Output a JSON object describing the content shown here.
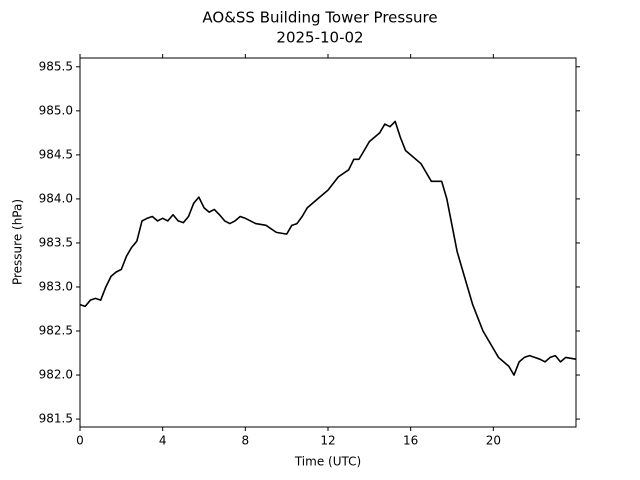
{
  "chart_data": {
    "type": "line",
    "title": "AO&SS Building Tower Pressure",
    "subtitle": "2025-10-02",
    "x_label": "Time (UTC)",
    "y_label": "Pressure (hPa)",
    "xlim": [
      0,
      24
    ],
    "xticks": [
      0,
      4,
      8,
      12,
      16,
      20
    ],
    "ylim": [
      981.41,
      985.6
    ],
    "yticks": [
      {
        "value": 981.5,
        "label": "981.5"
      },
      {
        "value": 982,
        "label": "982.0"
      },
      {
        "value": 982.5,
        "label": "982.5"
      },
      {
        "value": 983,
        "label": "983.0"
      },
      {
        "value": 983.5,
        "label": "983.5"
      },
      {
        "value": 984,
        "label": "984.0"
      },
      {
        "value": 984.5,
        "label": "984.5"
      },
      {
        "value": 985,
        "label": "985.0"
      },
      {
        "value": 985.5,
        "label": "985.5"
      }
    ],
    "grid": false,
    "series": [
      {
        "color": "#000000",
        "x": [
          0,
          0.25,
          0.5,
          0.75,
          1,
          1.25,
          1.5,
          1.75,
          2,
          2.25,
          2.5,
          2.75,
          3,
          3.25,
          3.5,
          3.75,
          4,
          4.25,
          4.5,
          4.75,
          5,
          5.25,
          5.5,
          5.75,
          6,
          6.25,
          6.5,
          6.75,
          7,
          7.25,
          7.5,
          7.75,
          8,
          8.5,
          9,
          9.5,
          10,
          10.25,
          10.5,
          10.75,
          11,
          11.5,
          12,
          12.5,
          13,
          13.25,
          13.5,
          13.75,
          14,
          14.5,
          14.75,
          15,
          15.25,
          15.5,
          15.75,
          16,
          16.5,
          16.75,
          17,
          17.5,
          17.75,
          18,
          18.25,
          18.5,
          18.75,
          19,
          19.25,
          19.5,
          19.75,
          20,
          20.25,
          20.5,
          20.75,
          21,
          21.25,
          21.5,
          21.75,
          22,
          22.25,
          22.5,
          22.75,
          23,
          23.25,
          23.5,
          24
        ],
        "values": [
          982.8,
          982.78,
          982.85,
          982.87,
          982.85,
          983.0,
          983.12,
          983.17,
          983.2,
          983.35,
          983.45,
          983.52,
          983.75,
          983.78,
          983.8,
          983.75,
          983.78,
          983.75,
          983.82,
          983.75,
          983.73,
          983.8,
          983.95,
          984.02,
          983.9,
          983.85,
          983.88,
          983.82,
          983.75,
          983.72,
          983.75,
          983.8,
          983.78,
          983.72,
          983.7,
          983.62,
          983.6,
          983.7,
          983.72,
          983.8,
          983.9,
          984.0,
          984.1,
          984.25,
          984.33,
          984.45,
          984.45,
          984.55,
          984.65,
          984.75,
          984.85,
          984.82,
          984.88,
          984.7,
          984.55,
          984.5,
          984.4,
          984.3,
          984.2,
          984.2,
          984.0,
          983.7,
          983.4,
          983.2,
          983.0,
          982.8,
          982.65,
          982.5,
          982.4,
          982.3,
          982.2,
          982.15,
          982.1,
          982.0,
          982.15,
          982.2,
          982.22,
          982.2,
          982.18,
          982.15,
          982.2,
          982.22,
          982.15,
          982.2,
          982.18
        ]
      }
    ]
  }
}
